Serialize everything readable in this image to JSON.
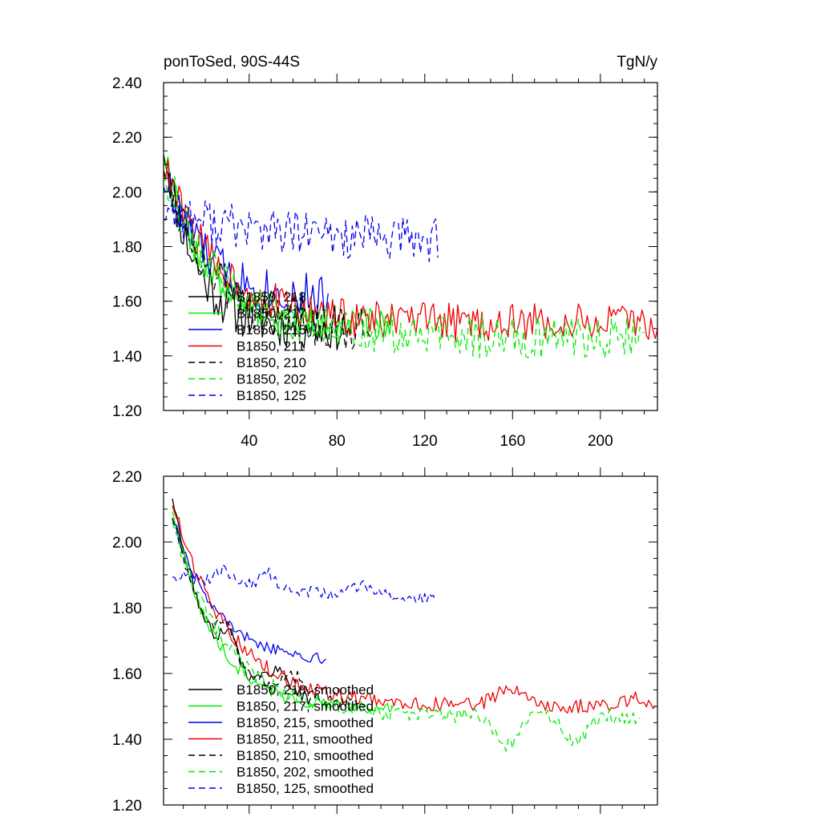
{
  "chart_data": [
    {
      "type": "line",
      "title": "ponToSed, 90S-44S",
      "units": "TgN/y",
      "xlabel": "",
      "ylabel": "",
      "xlim": [
        1,
        226
      ],
      "ylim": [
        1.2,
        2.4
      ],
      "xticks": [
        40,
        80,
        120,
        160,
        200
      ],
      "xtick_labels": [
        "40",
        "80",
        "120",
        "160",
        "200"
      ],
      "yticks": [
        1.2,
        1.4,
        1.6,
        1.8,
        2.0,
        2.2,
        2.4
      ],
      "ytick_labels": [
        "1.20",
        "1.40",
        "1.60",
        "1.80",
        "2.00",
        "2.20",
        "2.40"
      ],
      "legend_position": "bottom-left",
      "series": [
        {
          "name": "B1850, 218",
          "color": "#000000",
          "dash": "solid",
          "x0": 1,
          "length": 84,
          "start": 2.18,
          "end": 1.5,
          "tau": 14,
          "noise": 0.085,
          "seed": 11,
          "bumps": []
        },
        {
          "name": "B1850, 217",
          "color": "#00ee00",
          "dash": "solid",
          "x0": 1,
          "length": 105,
          "start": 2.15,
          "end": 1.51,
          "tau": 18,
          "noise": 0.06,
          "seed": 22,
          "bumps": []
        },
        {
          "name": "B1850, 215",
          "color": "#0000ee",
          "dash": "solid",
          "x0": 1,
          "length": 76,
          "start": 2.06,
          "end": 1.6,
          "tau": 20,
          "noise": 0.085,
          "seed": 33,
          "bumps": []
        },
        {
          "name": "B1850, 211",
          "color": "#ee0000",
          "dash": "solid",
          "x0": 1,
          "length": 226,
          "start": 2.1,
          "end": 1.52,
          "tau": 25,
          "noise": 0.07,
          "seed": 44,
          "bumps": []
        },
        {
          "name": "B1850, 210",
          "color": "#000000",
          "dash": "dashed",
          "x0": 1,
          "length": 95,
          "start": 2.12,
          "end": 1.5,
          "tau": 20,
          "noise": 0.085,
          "seed": 55,
          "bumps": []
        },
        {
          "name": "B1850, 202",
          "color": "#00ee00",
          "dash": "dashed",
          "x0": 1,
          "length": 220,
          "start": 2.1,
          "end": 1.47,
          "tau": 24,
          "noise": 0.08,
          "seed": 66,
          "bumps": []
        },
        {
          "name": "B1850, 125",
          "color": "#0000ee",
          "dash": "dashed",
          "x0": 1,
          "length": 126,
          "start": 1.94,
          "end": 1.82,
          "tau": 40,
          "noise": 0.085,
          "seed": 77,
          "bumps": []
        }
      ]
    },
    {
      "type": "line",
      "title": "",
      "xlabel": "",
      "ylabel": "",
      "xlim": [
        1,
        226
      ],
      "ylim": [
        1.2,
        2.2
      ],
      "xticks": [
        40,
        80,
        120,
        160,
        200
      ],
      "xtick_labels": [],
      "yticks": [
        1.2,
        1.4,
        1.6,
        1.8,
        2.0,
        2.2
      ],
      "ytick_labels": [
        "1.20",
        "1.40",
        "1.60",
        "1.80",
        "2.00",
        "2.20"
      ],
      "legend_position": "bottom-left",
      "series": [
        {
          "name": "B1850, 218, smoothed",
          "color": "#000000",
          "dash": "solid",
          "x0": 5,
          "length": 64,
          "start": 2.14,
          "end": 1.5,
          "tau": 17,
          "noise": 0.018,
          "seed": 111,
          "bumps": [
            [
              30,
              1.75,
              4
            ],
            [
              52,
              1.62,
              6
            ]
          ]
        },
        {
          "name": "B1850, 217, smoothed",
          "color": "#00ee00",
          "dash": "solid",
          "x0": 5,
          "length": 101,
          "start": 2.1,
          "end": 1.49,
          "tau": 19,
          "noise": 0.018,
          "seed": 122,
          "bumps": []
        },
        {
          "name": "B1850, 215, smoothed",
          "color": "#0000ee",
          "dash": "solid",
          "x0": 5,
          "length": 71,
          "start": 2.08,
          "end": 1.63,
          "tau": 20,
          "noise": 0.018,
          "seed": 133,
          "bumps": []
        },
        {
          "name": "B1850, 211, smoothed",
          "color": "#ee0000",
          "dash": "solid",
          "x0": 5,
          "length": 221,
          "start": 2.12,
          "end": 1.5,
          "tau": 26,
          "noise": 0.022,
          "seed": 144,
          "bumps": [
            [
              158,
              1.56,
              6
            ],
            [
              217,
              1.53,
              5
            ]
          ]
        },
        {
          "name": "B1850, 210, smoothed",
          "color": "#000000",
          "dash": "dashed",
          "x0": 5,
          "length": 86,
          "start": 2.08,
          "end": 1.5,
          "tau": 20,
          "noise": 0.018,
          "seed": 155,
          "bumps": [
            [
              28,
              1.77,
              4
            ],
            [
              60,
              1.6,
              5
            ]
          ]
        },
        {
          "name": "B1850, 202, smoothed",
          "color": "#00ee00",
          "dash": "dashed",
          "x0": 5,
          "length": 214,
          "start": 2.07,
          "end": 1.47,
          "tau": 24,
          "noise": 0.024,
          "seed": 166,
          "bumps": [
            [
              157,
              1.37,
              5
            ],
            [
              189,
              1.38,
              5
            ]
          ]
        },
        {
          "name": "B1850, 125, smoothed",
          "color": "#0000ee",
          "dash": "dashed",
          "x0": 5,
          "length": 121,
          "start": 1.9,
          "end": 1.82,
          "tau": 60,
          "noise": 0.018,
          "seed": 177,
          "bumps": [
            [
              28,
              1.92,
              4
            ],
            [
              48,
              1.91,
              4
            ],
            [
              90,
              1.87,
              5
            ]
          ]
        }
      ]
    }
  ]
}
